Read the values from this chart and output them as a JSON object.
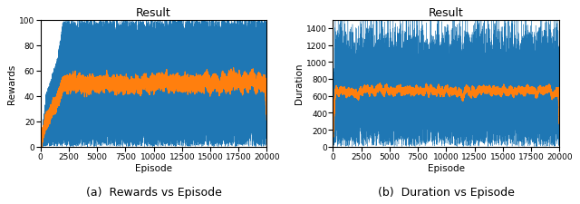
{
  "subplot_a_title": "Result",
  "subplot_b_title": "Result",
  "subplot_a_xlabel": "Episode",
  "subplot_a_ylabel": "Rewards",
  "subplot_b_xlabel": "Episode",
  "subplot_b_ylabel": "Duration",
  "caption_a": "(a)  Rewards vs Episode",
  "caption_b": "(b)  Duration vs Episode",
  "n_episodes": 20000,
  "rewards_ylim": [
    0,
    100
  ],
  "rewards_yticks": [
    0,
    20,
    40,
    60,
    80,
    100
  ],
  "duration_ylim": [
    0,
    1500
  ],
  "duration_yticks": [
    0,
    200,
    400,
    600,
    800,
    1000,
    1200,
    1400
  ],
  "xticks": [
    0,
    2500,
    5000,
    7500,
    10000,
    12500,
    15000,
    17500,
    20000
  ],
  "blue_color": "#1f77b4",
  "orange_color": "#ff7f0e",
  "background_color": "#ffffff",
  "title_fontsize": 9,
  "label_fontsize": 7.5,
  "tick_fontsize": 6.5,
  "caption_fontsize": 9,
  "seed": 42
}
